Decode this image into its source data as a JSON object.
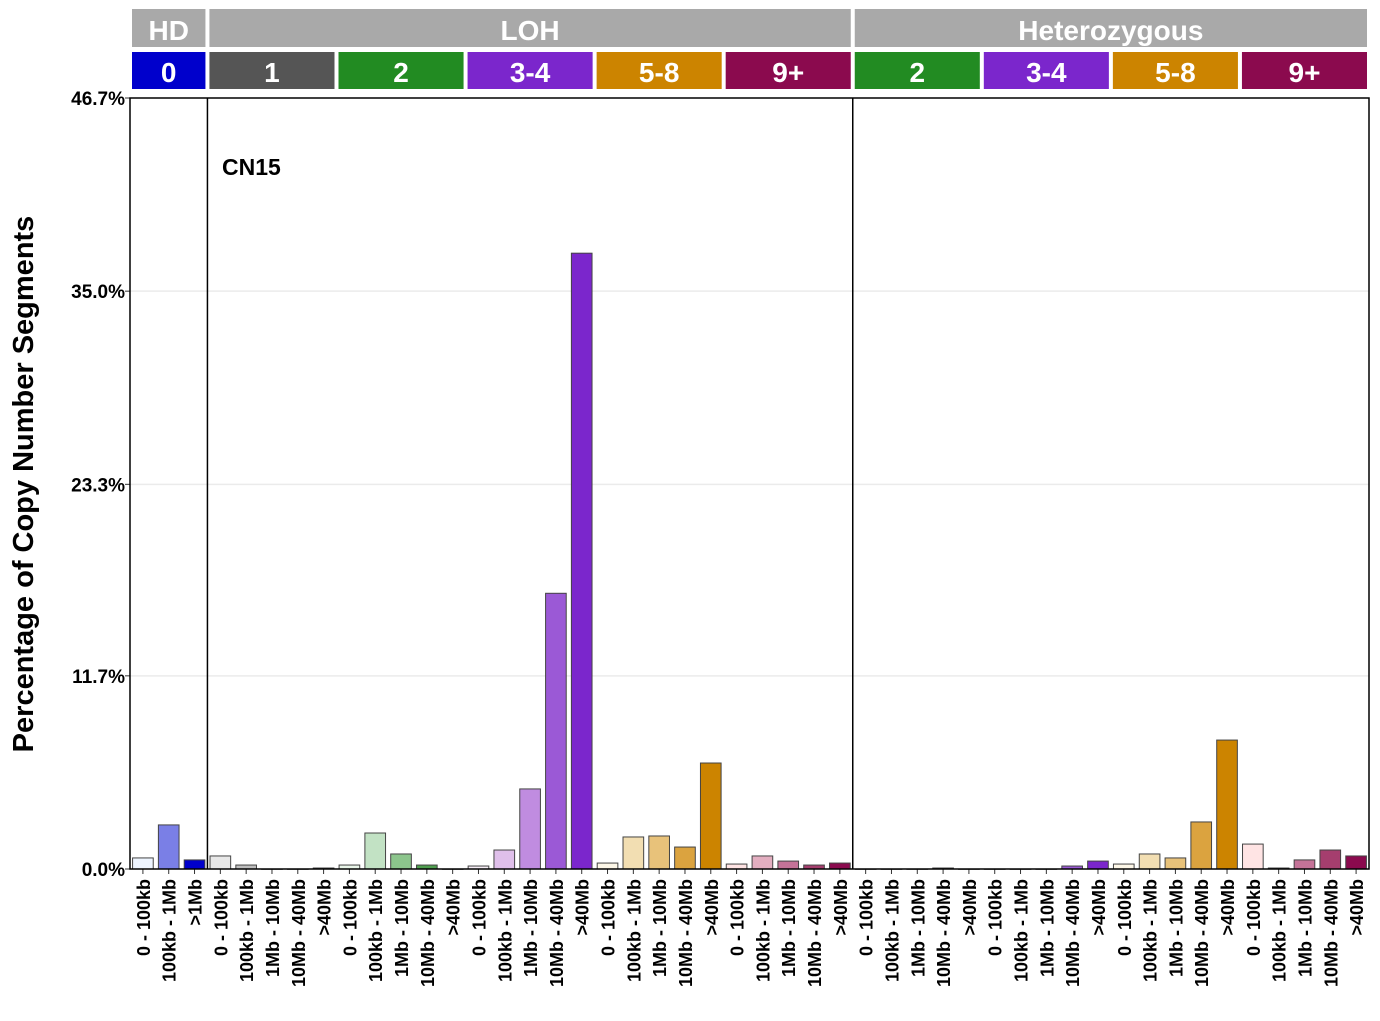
{
  "chart_data": {
    "type": "bar",
    "ylabel": "Percentage of Copy Number Segments",
    "annotation": "CN15",
    "ylim": [
      0,
      46.7
    ],
    "yticks": [
      "0.0%",
      "11.7%",
      "23.3%",
      "35.0%",
      "46.7%"
    ],
    "ytick_values": [
      0,
      11.7,
      23.3,
      35.0,
      46.7
    ],
    "grid": "horizontal",
    "groups": [
      {
        "name": "HD",
        "classes": [
          {
            "label": "0",
            "color": "#0000CC",
            "categories": [
              "0 - 100kb",
              "100kb - 1Mb",
              ">1Mb"
            ],
            "values": [
              0.67,
              2.67,
              0.55
            ],
            "colors": [
              "#EEF5FF",
              "#7A7FE6",
              "#0000CC"
            ]
          }
        ]
      },
      {
        "name": "LOH",
        "classes": [
          {
            "label": "1",
            "color": "#555555",
            "categories": [
              "0 - 100kb",
              "100kb - 1Mb",
              "1Mb - 10Mb",
              "10Mb - 40Mb",
              ">40Mb"
            ],
            "values": [
              0.79,
              0.24,
              0,
              0,
              0.06
            ],
            "colors": [
              "#E8E8E8",
              "#BEBEBE",
              "#8E8E8E",
              "#5E5E5E",
              "#2E2E2E"
            ]
          },
          {
            "label": "2",
            "color": "#228B22",
            "categories": [
              "0 - 100kb",
              "100kb - 1Mb",
              "1Mb - 10Mb",
              "10Mb - 40Mb",
              ">40Mb"
            ],
            "values": [
              0.24,
              2.18,
              0.91,
              0.24,
              0
            ],
            "colors": [
              "#EAF6EA",
              "#C2E2C4",
              "#8CC58C",
              "#4F9F4F",
              "#228B22"
            ]
          },
          {
            "label": "3-4",
            "color": "#7B26CC",
            "categories": [
              "0 - 100kb",
              "100kb - 1Mb",
              "1Mb - 10Mb",
              "10Mb - 40Mb",
              ">40Mb"
            ],
            "values": [
              0.18,
              1.15,
              4.85,
              16.7,
              37.3
            ],
            "colors": [
              "#F7EEF7",
              "#DFBFEA",
              "#C08CE0",
              "#9B59D6",
              "#7B26CC"
            ]
          },
          {
            "label": "5-8",
            "color": "#CC8400",
            "categories": [
              "0 - 100kb",
              "100kb - 1Mb",
              "1Mb - 10Mb",
              "10Mb - 40Mb",
              ">40Mb"
            ],
            "values": [
              0.36,
              1.94,
              2.0,
              1.33,
              6.42
            ],
            "colors": [
              "#FDF7E8",
              "#F2DEB2",
              "#E8C27A",
              "#DBA33F",
              "#CC8400"
            ]
          },
          {
            "label": "9+",
            "color": "#8B0A4E",
            "categories": [
              "0 - 100kb",
              "100kb - 1Mb",
              "1Mb - 10Mb",
              "10Mb - 40Mb",
              ">40Mb"
            ],
            "values": [
              0.3,
              0.79,
              0.48,
              0.24,
              0.36
            ],
            "colors": [
              "#FFE4E4",
              "#E3AEC0",
              "#C57398",
              "#A53E6E",
              "#8B0A4E"
            ]
          }
        ]
      },
      {
        "name": "Heterozygous",
        "classes": [
          {
            "label": "2",
            "color": "#228B22",
            "categories": [
              "0 - 100kb",
              "100kb - 1Mb",
              "1Mb - 10Mb",
              "10Mb - 40Mb",
              ">40Mb"
            ],
            "values": [
              0,
              0,
              0,
              0.06,
              0
            ],
            "colors": [
              "#EAF6EA",
              "#C2E2C4",
              "#8CC58C",
              "#4F9F4F",
              "#228B22"
            ]
          },
          {
            "label": "3-4",
            "color": "#7B26CC",
            "categories": [
              "0 - 100kb",
              "100kb - 1Mb",
              "1Mb - 10Mb",
              "10Mb - 40Mb",
              ">40Mb"
            ],
            "values": [
              0,
              0,
              0,
              0.18,
              0.48
            ],
            "colors": [
              "#F7EEF7",
              "#DFBFEA",
              "#C08CE0",
              "#9B59D6",
              "#7B26CC"
            ]
          },
          {
            "label": "5-8",
            "color": "#CC8400",
            "categories": [
              "0 - 100kb",
              "100kb - 1Mb",
              "1Mb - 10Mb",
              "10Mb - 40Mb",
              ">40Mb"
            ],
            "values": [
              0.3,
              0.91,
              0.67,
              2.85,
              7.81
            ],
            "colors": [
              "#FDF7E8",
              "#F2DEB2",
              "#E8C27A",
              "#DBA33F",
              "#CC8400"
            ]
          },
          {
            "label": "9+",
            "color": "#8B0A4E",
            "categories": [
              "0 - 100kb",
              "100kb - 1Mb",
              "1Mb - 10Mb",
              "10Mb - 40Mb",
              ">40Mb"
            ],
            "values": [
              1.51,
              0.06,
              0.55,
              1.15,
              0.79
            ],
            "colors": [
              "#FFE4E4",
              "#E3AEC0",
              "#C57398",
              "#A53E6E",
              "#8B0A4E"
            ]
          }
        ]
      }
    ]
  }
}
